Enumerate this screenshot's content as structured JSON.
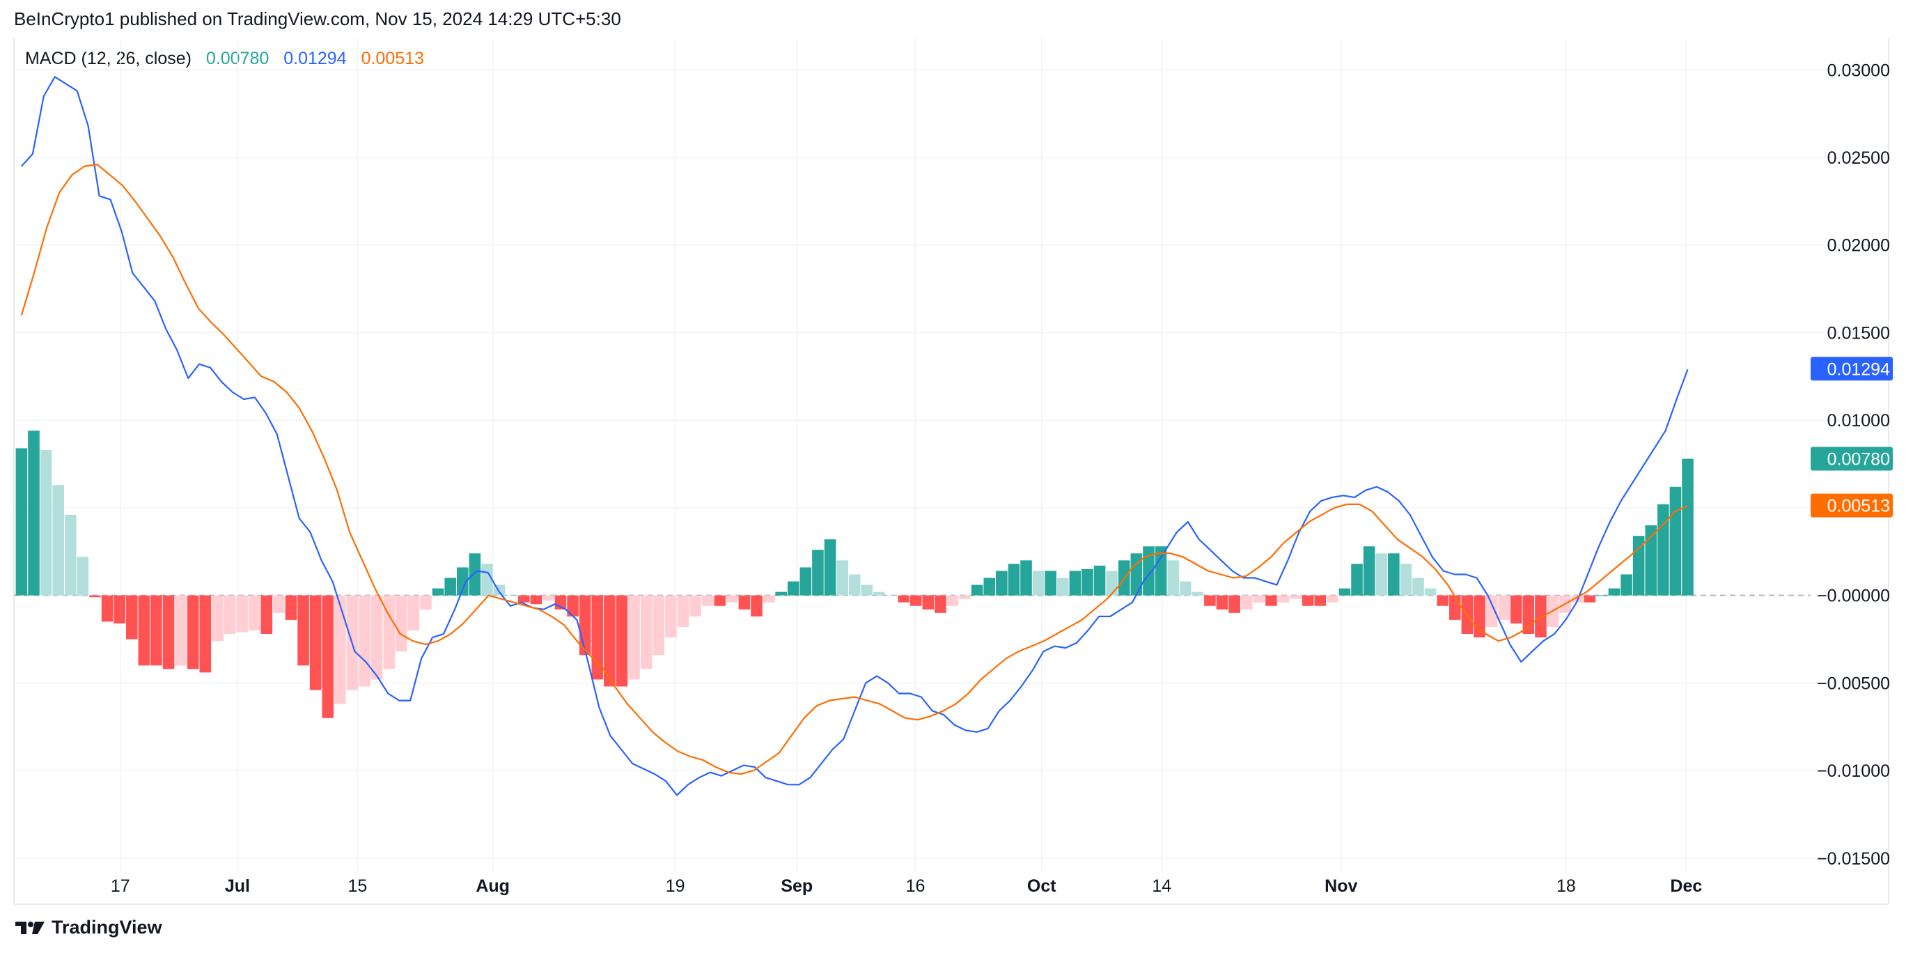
{
  "header": {
    "attribution": "BeInCrypto1 published on TradingView.com, Nov 15, 2024 14:29 UTC+5:30"
  },
  "footer": {
    "brand": "TradingView",
    "logo_icon": "tradingview-logo-icon"
  },
  "legend": {
    "indicator": "MACD (12, 26, close)",
    "histogram_value": "0.00780",
    "macd_value": "0.01294",
    "signal_value": "0.00513"
  },
  "colors": {
    "macd_line": "#2962ff",
    "signal_line": "#ff6d00",
    "hist_pos_strong": "#26a69a",
    "hist_pos_weak": "#b2dfdb",
    "hist_neg_strong": "#ff5252",
    "hist_neg_weak": "#ffcdd2",
    "grid": "#f0f3fa",
    "axis_text": "#131722"
  },
  "chart_data": {
    "type": "line",
    "ylim": [
      -0.0158,
      0.0318
    ],
    "grid": true,
    "legend_position": "top-left",
    "y_ticks": [
      0.03,
      0.025,
      0.02,
      0.015,
      0.01,
      0.005,
      0,
      -0.005,
      -0.01,
      -0.015
    ],
    "y_tick_labels": [
      "0.03000",
      "0.02500",
      "0.02000",
      "0.01500",
      "0.01000",
      "0.00500",
      "−0.00000",
      "−0.00500",
      "−0.01000",
      "−0.01500"
    ],
    "x_ticks": [
      {
        "label": "17",
        "bold": false,
        "bar": 6.5
      },
      {
        "label": "Jul",
        "bold": true,
        "bar": 14.2
      },
      {
        "label": "15",
        "bold": false,
        "bar": 22.1
      },
      {
        "label": "Aug",
        "bold": true,
        "bar": 31
      },
      {
        "label": "19",
        "bold": false,
        "bar": 43
      },
      {
        "label": "Sep",
        "bold": true,
        "bar": 51
      },
      {
        "label": "16",
        "bold": false,
        "bar": 58.8
      },
      {
        "label": "Oct",
        "bold": true,
        "bar": 67.1
      },
      {
        "label": "14",
        "bold": false,
        "bar": 75
      },
      {
        "label": "Nov",
        "bold": true,
        "bar": 86.8
      },
      {
        "label": "18",
        "bold": false,
        "bar": 101.6
      },
      {
        "label": "Dec",
        "bold": true,
        "bar": 109.5
      }
    ],
    "x_range": [
      -0.5,
      117.5
    ],
    "price_tags": [
      {
        "value": 0.01294,
        "label": "0.01294",
        "color": "#2962ff"
      },
      {
        "value": 0.0078,
        "label": "0.00780",
        "color": "#26a69a"
      },
      {
        "value": 0.00513,
        "label": "0.00513",
        "color": "#ff6d00"
      }
    ],
    "series": [
      {
        "name": "MACD",
        "values": [
          0.0245,
          0.0252,
          0.0285,
          0.0296,
          0.0292,
          0.0288,
          0.0268,
          0.0228,
          0.0226,
          0.0208,
          0.0184,
          0.0176,
          0.0168,
          0.0152,
          0.014,
          0.0124,
          0.0132,
          0.013,
          0.0122,
          0.0116,
          0.0112,
          0.0113,
          0.0104,
          0.0092,
          0.0068,
          0.0044,
          0.0036,
          0.002,
          0.0008,
          -0.0012,
          -0.0032,
          -0.0038,
          -0.0046,
          -0.0056,
          -0.006,
          -0.006,
          -0.0036,
          -0.0024,
          -0.0022,
          -0.0008,
          0.0008,
          0.0014,
          0.0013,
          0.0002,
          -0.0006,
          -0.0004,
          -0.0007,
          -0.0008,
          -0.0005,
          -0.0008,
          -0.0014,
          -0.0038,
          -0.0064,
          -0.008,
          -0.0088,
          -0.0096,
          -0.0099,
          -0.0102,
          -0.0106,
          -0.0114,
          -0.0108,
          -0.0104,
          -0.0101,
          -0.0103,
          -0.01,
          -0.0097,
          -0.0098,
          -0.0104,
          -0.0106,
          -0.0108,
          -0.0108,
          -0.0104,
          -0.0096,
          -0.0088,
          -0.0082,
          -0.0066,
          -0.005,
          -0.0046,
          -0.005,
          -0.0056,
          -0.0056,
          -0.0058,
          -0.0066,
          -0.0068,
          -0.0074,
          -0.0077,
          -0.0078,
          -0.0076,
          -0.0066,
          -0.006,
          -0.0052,
          -0.0043,
          -0.0032,
          -0.0029,
          -0.003,
          -0.0027,
          -0.002,
          -0.0012,
          -0.0012,
          -0.0008,
          -0.0004,
          0.0008,
          0.0016,
          0.0026,
          0.0036,
          0.0042,
          0.0032,
          0.0026,
          0.002,
          0.0014,
          0.001,
          0.001,
          0.0008,
          0.0006,
          0.002,
          0.0036,
          0.0048,
          0.0054,
          0.0056,
          0.0057,
          0.0056,
          0.006,
          0.0062,
          0.0059,
          0.0054,
          0.0046,
          0.0034,
          0.0022,
          0.0014,
          0.0012,
          0.0012,
          0.001,
          0.0,
          -0.0014,
          -0.0028,
          -0.0038,
          -0.0032,
          -0.0026,
          -0.0022,
          -0.0014,
          -0.0004,
          0.0012,
          0.0028,
          0.0042,
          0.0054,
          0.0064,
          0.0074,
          0.0084,
          0.0094,
          0.0112,
          0.0129
        ]
      },
      {
        "name": "Signal",
        "values": [
          0.016,
          0.0184,
          0.021,
          0.023,
          0.024,
          0.0245,
          0.0246,
          0.024,
          0.0234,
          0.0225,
          0.0215,
          0.0205,
          0.0193,
          0.0178,
          0.0164,
          0.0156,
          0.0149,
          0.0141,
          0.0133,
          0.0125,
          0.0122,
          0.0116,
          0.0107,
          0.0094,
          0.0078,
          0.006,
          0.0036,
          0.002,
          0.0004,
          -0.001,
          -0.0022,
          -0.0026,
          -0.0028,
          -0.0026,
          -0.0022,
          -0.0016,
          -0.0008,
          0.0,
          -0.0002,
          -0.0004,
          -0.0006,
          -0.0008,
          -0.0012,
          -0.0017,
          -0.0026,
          -0.0034,
          -0.0041,
          -0.0052,
          -0.0062,
          -0.007,
          -0.0078,
          -0.0084,
          -0.0089,
          -0.0092,
          -0.0094,
          -0.0098,
          -0.0101,
          -0.0102,
          -0.01,
          -0.0095,
          -0.009,
          -0.008,
          -0.007,
          -0.0063,
          -0.006,
          -0.0059,
          -0.0058,
          -0.006,
          -0.0062,
          -0.0066,
          -0.007,
          -0.0071,
          -0.0069,
          -0.0066,
          -0.0062,
          -0.0056,
          -0.0048,
          -0.0042,
          -0.0036,
          -0.0032,
          -0.0029,
          -0.0026,
          -0.0022,
          -0.0018,
          -0.0014,
          -0.0008,
          -0.0002,
          0.0006,
          0.0016,
          0.0022,
          0.0024,
          0.0024,
          0.0022,
          0.0018,
          0.0014,
          0.0012,
          0.001,
          0.0011,
          0.0016,
          0.0022,
          0.003,
          0.0036,
          0.0042,
          0.0046,
          0.005,
          0.0052,
          0.0052,
          0.0048,
          0.004,
          0.0032,
          0.0027,
          0.0022,
          0.0015,
          0.0006,
          -0.0006,
          -0.0016,
          -0.0022,
          -0.0026,
          -0.0024,
          -0.002,
          -0.0014,
          -0.001,
          -0.0006,
          -0.0002,
          0.0002,
          0.0008,
          0.0014,
          0.002,
          0.0026,
          0.0033,
          0.004,
          0.0048,
          0.0051
        ]
      },
      {
        "name": "Histogram",
        "values": [
          0.0084,
          0.0094,
          0.0083,
          0.0063,
          0.0046,
          0.0022,
          -0.0001,
          -0.0015,
          -0.0016,
          -0.0025,
          -0.004,
          -0.004,
          -0.0042,
          -0.004,
          -0.0042,
          -0.0044,
          -0.0026,
          -0.0022,
          -0.0021,
          -0.002,
          -0.0022,
          -0.001,
          -0.0014,
          -0.004,
          -0.0054,
          -0.007,
          -0.0062,
          -0.0054,
          -0.0052,
          -0.0048,
          -0.0042,
          -0.0032,
          -0.002,
          -0.0008,
          0.0004,
          0.001,
          0.0016,
          0.0024,
          0.0018,
          0.0006,
          0.0,
          -0.0004,
          -0.0005,
          -0.0003,
          -0.0008,
          -0.0012,
          -0.0034,
          -0.0048,
          -0.0052,
          -0.0052,
          -0.0048,
          -0.0042,
          -0.0034,
          -0.0024,
          -0.0018,
          -0.0012,
          -0.0006,
          -0.0006,
          -0.0004,
          -0.0008,
          -0.0012,
          -0.0004,
          0.0002,
          0.0008,
          0.0016,
          0.0026,
          0.0032,
          0.002,
          0.0012,
          0.0006,
          0.0002,
          0.0,
          -0.0004,
          -0.0006,
          -0.0008,
          -0.001,
          -0.0006,
          -0.0002,
          0.0006,
          0.001,
          0.0014,
          0.0018,
          0.002,
          0.0014,
          0.0014,
          0.001,
          0.0014,
          0.0015,
          0.0017,
          0.0014,
          0.002,
          0.0024,
          0.0028,
          0.0028,
          0.002,
          0.0008,
          0.0002,
          -0.0006,
          -0.0008,
          -0.001,
          -0.0008,
          -0.0004,
          -0.0006,
          -0.0004,
          -0.0002,
          -0.0006,
          -0.0006,
          -0.0004,
          0.0004,
          0.0018,
          0.0028,
          0.0024,
          0.0024,
          0.0018,
          0.001,
          0.0004,
          -0.0006,
          -0.0014,
          -0.0022,
          -0.0024,
          -0.0018,
          -0.0014,
          -0.0016,
          -0.0022,
          -0.0024,
          -0.0018,
          -0.001,
          -0.0004,
          -0.0004,
          0.0,
          0.0004,
          0.0012,
          0.0034,
          0.004,
          0.0052,
          0.0062,
          0.0078
        ]
      }
    ]
  }
}
